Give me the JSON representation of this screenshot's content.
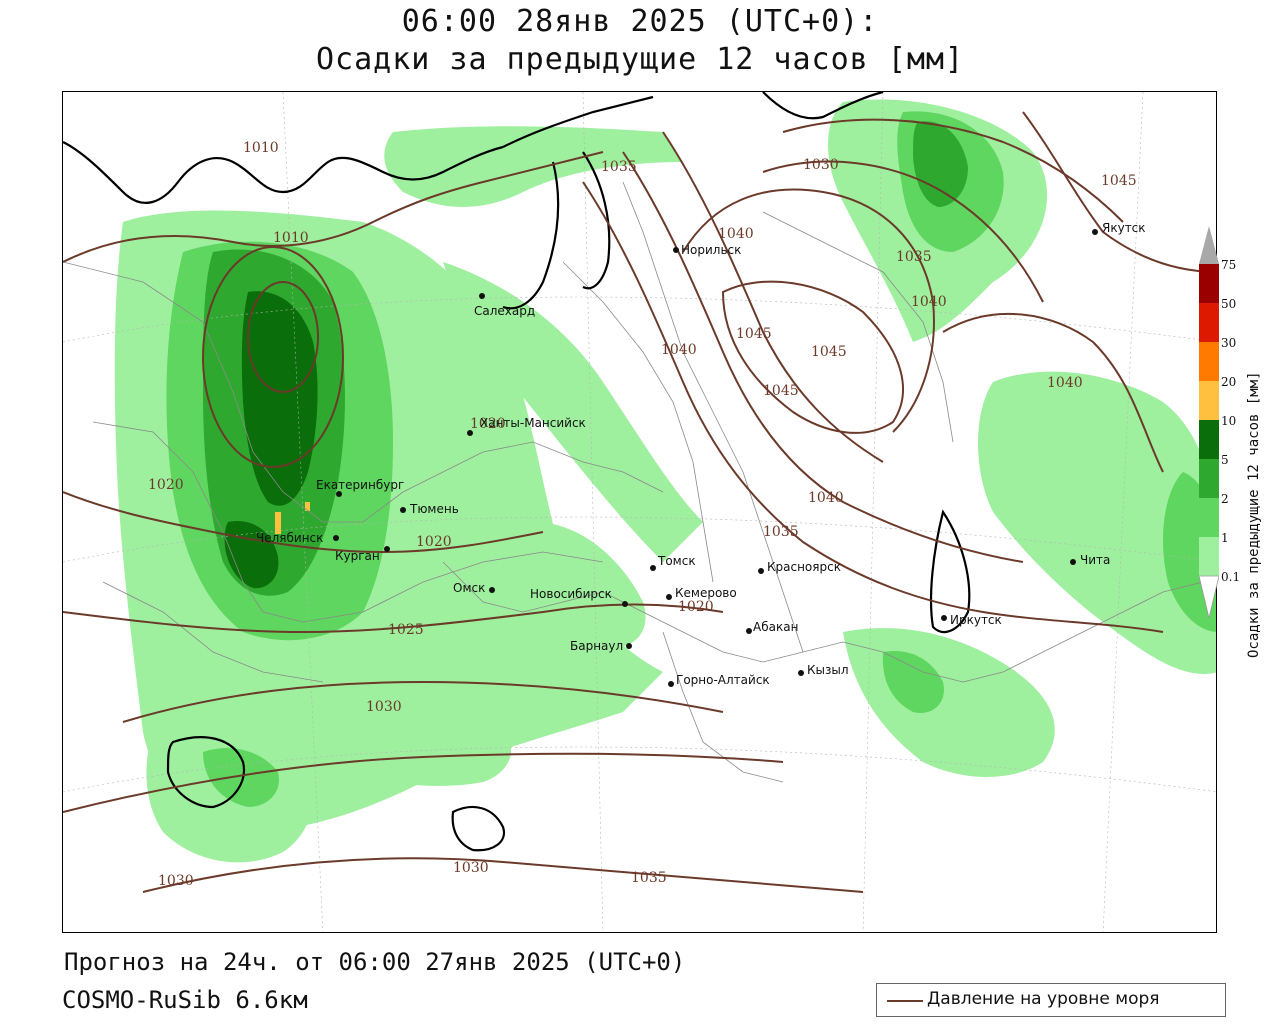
{
  "header": {
    "title_line1": "06:00 28янв 2025 (UTC+0):",
    "title_line2": "Осадки за предыдущие 12 часов [мм]"
  },
  "footer": {
    "forecast": "Прогноз на 24ч. от 06:00 27янв 2025 (UTC+0)",
    "model": "COSMO-RuSib 6.6км"
  },
  "legend": {
    "pressure_label": "Давление на уровне моря",
    "pressure_color": "#6b3a2a"
  },
  "colorbar": {
    "title": "Осадки за предыдущие 12 часов [мм]",
    "labels": [
      "75",
      "50",
      "30",
      "20",
      "10",
      "5",
      "2",
      "1",
      "0.1"
    ],
    "colors": {
      "gt75": "#a8a8a8",
      "50-75": "#9b0000",
      "30-50": "#dd1a00",
      "20-30": "#ff7a00",
      "10-20": "#ffc040",
      "5-10": "#0a6e0a",
      "2-5": "#2fa82f",
      "1-2": "#5fd65f",
      "0.1-1": "#9ef09e",
      "lt0.1": "#ffffff"
    }
  },
  "cities": [
    {
      "name": "Норильск"
    },
    {
      "name": "Якутск"
    },
    {
      "name": "Салехард"
    },
    {
      "name": "Ханты-Мансийск"
    },
    {
      "name": "Екатеринбург"
    },
    {
      "name": "Тюмень"
    },
    {
      "name": "Челябинск"
    },
    {
      "name": "Курган"
    },
    {
      "name": "Омск"
    },
    {
      "name": "Новосибирск"
    },
    {
      "name": "Томск"
    },
    {
      "name": "Кемерово"
    },
    {
      "name": "Красноярск"
    },
    {
      "name": "Абакан"
    },
    {
      "name": "Барнаул"
    },
    {
      "name": "Горно-Алтайск"
    },
    {
      "name": "Кызыл"
    },
    {
      "name": "Иркутск"
    },
    {
      "name": "Чита"
    }
  ],
  "isobar_labels": [
    "1010",
    "1010",
    "1020",
    "1020",
    "1020",
    "1020",
    "1025",
    "1030",
    "1030",
    "1030",
    "1030",
    "1035",
    "1035",
    "1035",
    "1035",
    "1040",
    "1040",
    "1040",
    "1040",
    "1040",
    "1045",
    "1045",
    "1045",
    "1045"
  ]
}
